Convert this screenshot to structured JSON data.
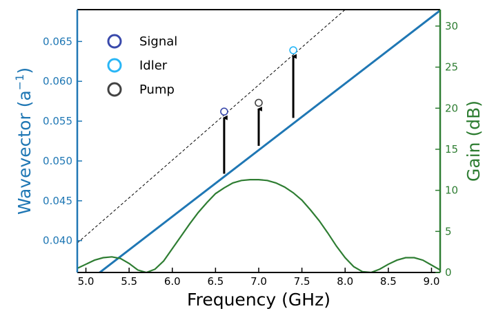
{
  "chart_data": {
    "type": "line",
    "xlabel": "Frequency (GHz)",
    "ylabel_left": "Wavevector (a",
    "ylabel_left_exponent": "−1",
    "ylabel_left_close": ")",
    "ylabel_right": "Gain (dB)",
    "xlim": [
      4.9,
      9.1
    ],
    "ylim_left": [
      0.036,
      0.069
    ],
    "ylim_right": [
      0,
      32
    ],
    "xticks": [
      "5.0",
      "5.5",
      "6.0",
      "6.5",
      "7.0",
      "7.5",
      "8.0",
      "8.5",
      "9.0"
    ],
    "xtick_values": [
      5.0,
      5.5,
      6.0,
      6.5,
      7.0,
      7.5,
      8.0,
      8.5,
      9.0
    ],
    "yticks_left": [
      "0.040",
      "0.045",
      "0.050",
      "0.055",
      "0.060",
      "0.065"
    ],
    "ytick_values_left": [
      0.04,
      0.045,
      0.05,
      0.055,
      0.06,
      0.065
    ],
    "yticks_right": [
      "0",
      "5",
      "10",
      "15",
      "20",
      "25",
      "30"
    ],
    "ytick_values_right": [
      0,
      5,
      10,
      15,
      20,
      25,
      30
    ],
    "grid": false,
    "legend_position": "top-left",
    "colors": {
      "left_axis": "#1f77b4",
      "right_axis": "#2e7d32",
      "dispersion": "#1f77b4",
      "gain": "#2e7d32",
      "signal": "#3949ab",
      "idler": "#29b6f6",
      "pump": "#424242",
      "arrow": "#000000",
      "phase_line": "#000000"
    },
    "series": [
      {
        "name": "",
        "kind": "dispersion",
        "axis": "left",
        "x": [
          5.1,
          9.1
        ],
        "y": [
          0.0355,
          0.0689
        ]
      },
      {
        "name": "",
        "kind": "phase-matching",
        "axis": "left",
        "x": [
          4.9,
          8.0
        ],
        "y": [
          0.0397,
          0.069
        ]
      },
      {
        "name": "",
        "kind": "gain",
        "axis": "right",
        "x": [
          4.9,
          5.0,
          5.1,
          5.2,
          5.3,
          5.4,
          5.5,
          5.6,
          5.7,
          5.8,
          5.9,
          6.0,
          6.1,
          6.2,
          6.3,
          6.4,
          6.5,
          6.6,
          6.7,
          6.8,
          6.9,
          7.0,
          7.1,
          7.2,
          7.3,
          7.4,
          7.5,
          7.6,
          7.7,
          7.8,
          7.9,
          8.0,
          8.1,
          8.2,
          8.3,
          8.4,
          8.5,
          8.6,
          8.7,
          8.8,
          8.9,
          9.0,
          9.1
        ],
        "y": [
          0.5,
          1.0,
          1.5,
          1.8,
          1.9,
          1.7,
          1.1,
          0.3,
          0.0,
          0.4,
          1.4,
          2.9,
          4.4,
          5.9,
          7.3,
          8.5,
          9.6,
          10.3,
          10.9,
          11.2,
          11.3,
          11.3,
          11.2,
          10.9,
          10.4,
          9.7,
          8.8,
          7.6,
          6.3,
          4.8,
          3.2,
          1.8,
          0.7,
          0.1,
          0.0,
          0.4,
          1.0,
          1.5,
          1.8,
          1.8,
          1.5,
          0.9,
          0.3
        ]
      }
    ],
    "markers": [
      {
        "name": "Signal",
        "x": 6.6,
        "y": 0.0562,
        "arrow_from": 0.0484
      },
      {
        "name": "Idler",
        "x": 7.4,
        "y": 0.0639,
        "arrow_from": 0.0554
      },
      {
        "name": "Pump",
        "x": 7.0,
        "y": 0.0573,
        "arrow_from": 0.0519
      }
    ],
    "legend": [
      {
        "label": "Signal",
        "color": "#3949ab"
      },
      {
        "label": "Idler",
        "color": "#29b6f6"
      },
      {
        "label": "Pump",
        "color": "#424242"
      }
    ]
  }
}
